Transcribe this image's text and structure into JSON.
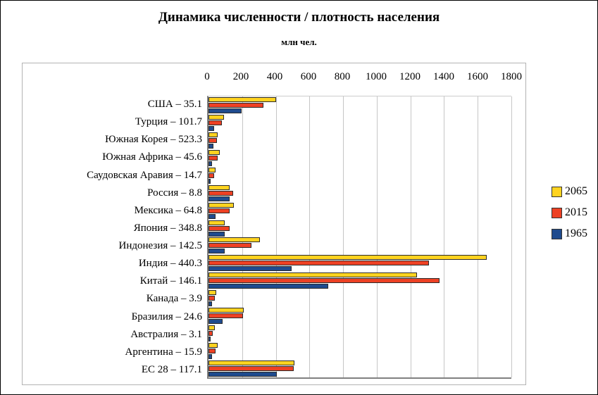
{
  "title": "Динамика численности / плотность населения",
  "subtitle": "млн чел.",
  "chart_data": {
    "type": "bar",
    "orientation": "horizontal",
    "title": "Динамика численности / плотность населения",
    "units_label": "млн чел.",
    "xlim": [
      0,
      1800
    ],
    "xticks": [
      0,
      200,
      400,
      600,
      800,
      1000,
      1200,
      1400,
      1600,
      1800
    ],
    "grid": true,
    "legend_position": "right",
    "categories": [
      "США – 35.1",
      "Турция – 101.7",
      "Южная Корея – 523.3",
      "Южная Африка – 45.6",
      "Саудовская Аравия – 14.7",
      "Россия – 8.8",
      "Мексика – 64.8",
      "Япония – 348.8",
      "Индонезия – 142.5",
      "Индия – 440.3",
      "Китай – 146.1",
      "Канада – 3.9",
      "Бразилия – 24.6",
      "Австралия – 3.1",
      "Аргентина – 15.9",
      "ЕС 28 – 117.1"
    ],
    "series": [
      {
        "name": "2065",
        "color": "#FFD320",
        "values": [
          400,
          90,
          55,
          68,
          42,
          125,
          150,
          95,
          305,
          1655,
          1240,
          47,
          210,
          38,
          55,
          512
        ]
      },
      {
        "name": "2015",
        "color": "#ED4124",
        "values": [
          325,
          78,
          52,
          56,
          32,
          146,
          125,
          127,
          255,
          1310,
          1375,
          36,
          205,
          24,
          43,
          505
        ]
      },
      {
        "name": "1965",
        "color": "#1F4B8E",
        "values": [
          195,
          32,
          29,
          20,
          5,
          126,
          43,
          98,
          98,
          495,
          712,
          20,
          83,
          12,
          22,
          408
        ]
      }
    ]
  }
}
